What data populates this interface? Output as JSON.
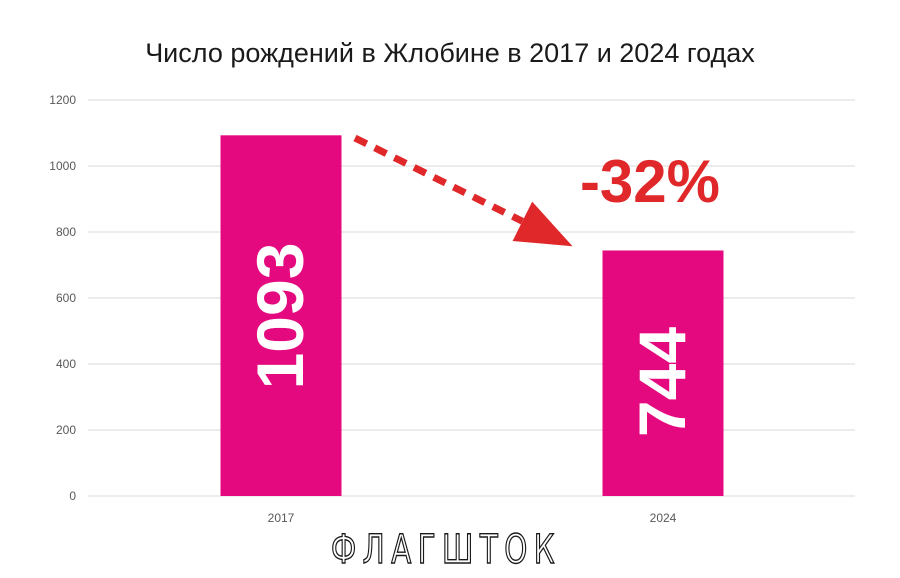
{
  "chart_data": {
    "type": "bar",
    "title": "Число рождений в Жлобине в 2017 и 2024 годах",
    "categories": [
      "2017",
      "2024"
    ],
    "values": [
      1093,
      744
    ],
    "data_labels": [
      "1093",
      "744"
    ],
    "ylim": [
      0,
      1200
    ],
    "yticks": [
      "0",
      "200",
      "400",
      "600",
      "800",
      "1000",
      "1200"
    ],
    "grid": true,
    "bar_color": "#e4097f",
    "annotation": {
      "text": "-32%",
      "color": "#e0282a",
      "arrow": "dashed arrow from 2017 bar top toward 2024 bar top"
    },
    "watermark": "ФЛАГШТОК"
  }
}
